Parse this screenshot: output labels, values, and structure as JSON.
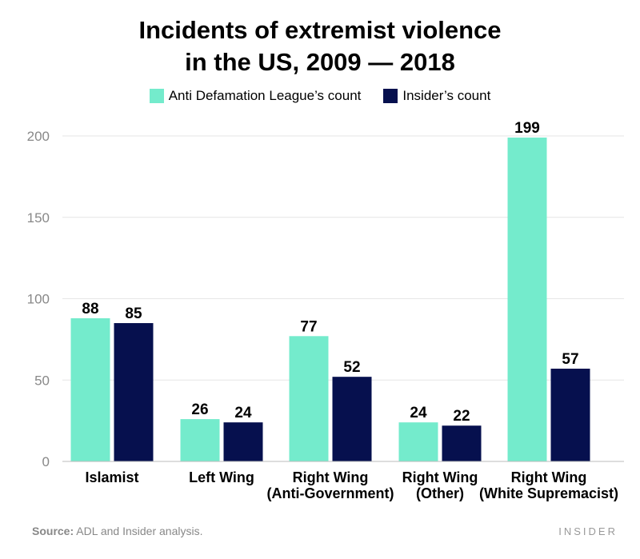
{
  "header": {
    "title_line1": "Incidents of extremist violence",
    "title_line2": "in the US, 2009 — 2018"
  },
  "legend": {
    "adl_label": "Anti Defamation League’s count",
    "insider_label": "Insider’s count"
  },
  "colors": {
    "adl": "#74EBCC",
    "insider": "#06104E",
    "grid": "#e6e6e6",
    "tick_text": "#888888"
  },
  "chart_data": {
    "type": "bar",
    "title": "Incidents of extremist violence in the US, 2009 — 2018",
    "xlabel": "",
    "ylabel": "",
    "ylim": [
      0,
      200
    ],
    "yticks": [
      0,
      50,
      100,
      150,
      200
    ],
    "grid": true,
    "legend_position": "top-center",
    "categories": [
      [
        "Islamist"
      ],
      [
        "Left Wing"
      ],
      [
        "Right Wing",
        "(Anti-Government)"
      ],
      [
        "Right Wing",
        "(Other)"
      ],
      [
        "Right Wing",
        "(White Supremacist)"
      ]
    ],
    "series": [
      {
        "name": "Anti Defamation League’s count",
        "values": [
          88,
          26,
          77,
          24,
          199
        ]
      },
      {
        "name": "Insider’s count",
        "values": [
          85,
          24,
          52,
          22,
          57
        ]
      }
    ]
  },
  "footer": {
    "source_label": "Source:",
    "source_text": " ADL and Insider analysis.",
    "brand": "INSIDER"
  }
}
